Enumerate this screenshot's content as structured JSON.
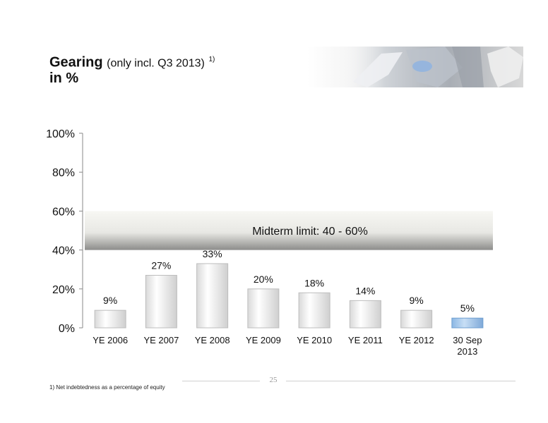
{
  "title": {
    "main": "Gearing",
    "qualifier": "(only incl. Q3 2013)",
    "footnote_ref": "1)",
    "line2": "in %"
  },
  "chart_data": {
    "type": "bar",
    "categories": [
      "YE 2006",
      "YE 2007",
      "YE 2008",
      "YE 2009",
      "YE 2010",
      "YE 2011",
      "YE 2012",
      "30 Sep 2013"
    ],
    "category_lines": [
      [
        "YE 2006"
      ],
      [
        "YE 2007"
      ],
      [
        "YE 2008"
      ],
      [
        "YE 2009"
      ],
      [
        "YE 2010"
      ],
      [
        "YE 2011"
      ],
      [
        "YE 2012"
      ],
      [
        "30 Sep",
        "2013"
      ]
    ],
    "values": [
      9,
      27,
      33,
      20,
      18,
      14,
      9,
      5
    ],
    "value_labels": [
      "9%",
      "27%",
      "33%",
      "20%",
      "18%",
      "14%",
      "9%",
      "5%"
    ],
    "ylim": [
      0,
      100
    ],
    "yticks": [
      0,
      20,
      40,
      60,
      80,
      100
    ],
    "ytick_labels": [
      "0%",
      "20%",
      "40%",
      "60%",
      "80%",
      "100%"
    ],
    "band": {
      "from": 40,
      "to": 60,
      "label": "Midterm limit: 40 - 60%"
    },
    "highlight_index": 7,
    "colors": {
      "bar": "#f2f2f2",
      "bar_edge": "#bdbdbd",
      "highlight": "#9ec4ea",
      "highlight_edge": "#6f9fd0",
      "band_top": "#f6f6f2",
      "band_bottom": "#9a9a98"
    },
    "grid": false,
    "legend": "none"
  },
  "footer": {
    "page_number": "25",
    "footnote": "1) Net indebtedness as a percentage of equity"
  }
}
